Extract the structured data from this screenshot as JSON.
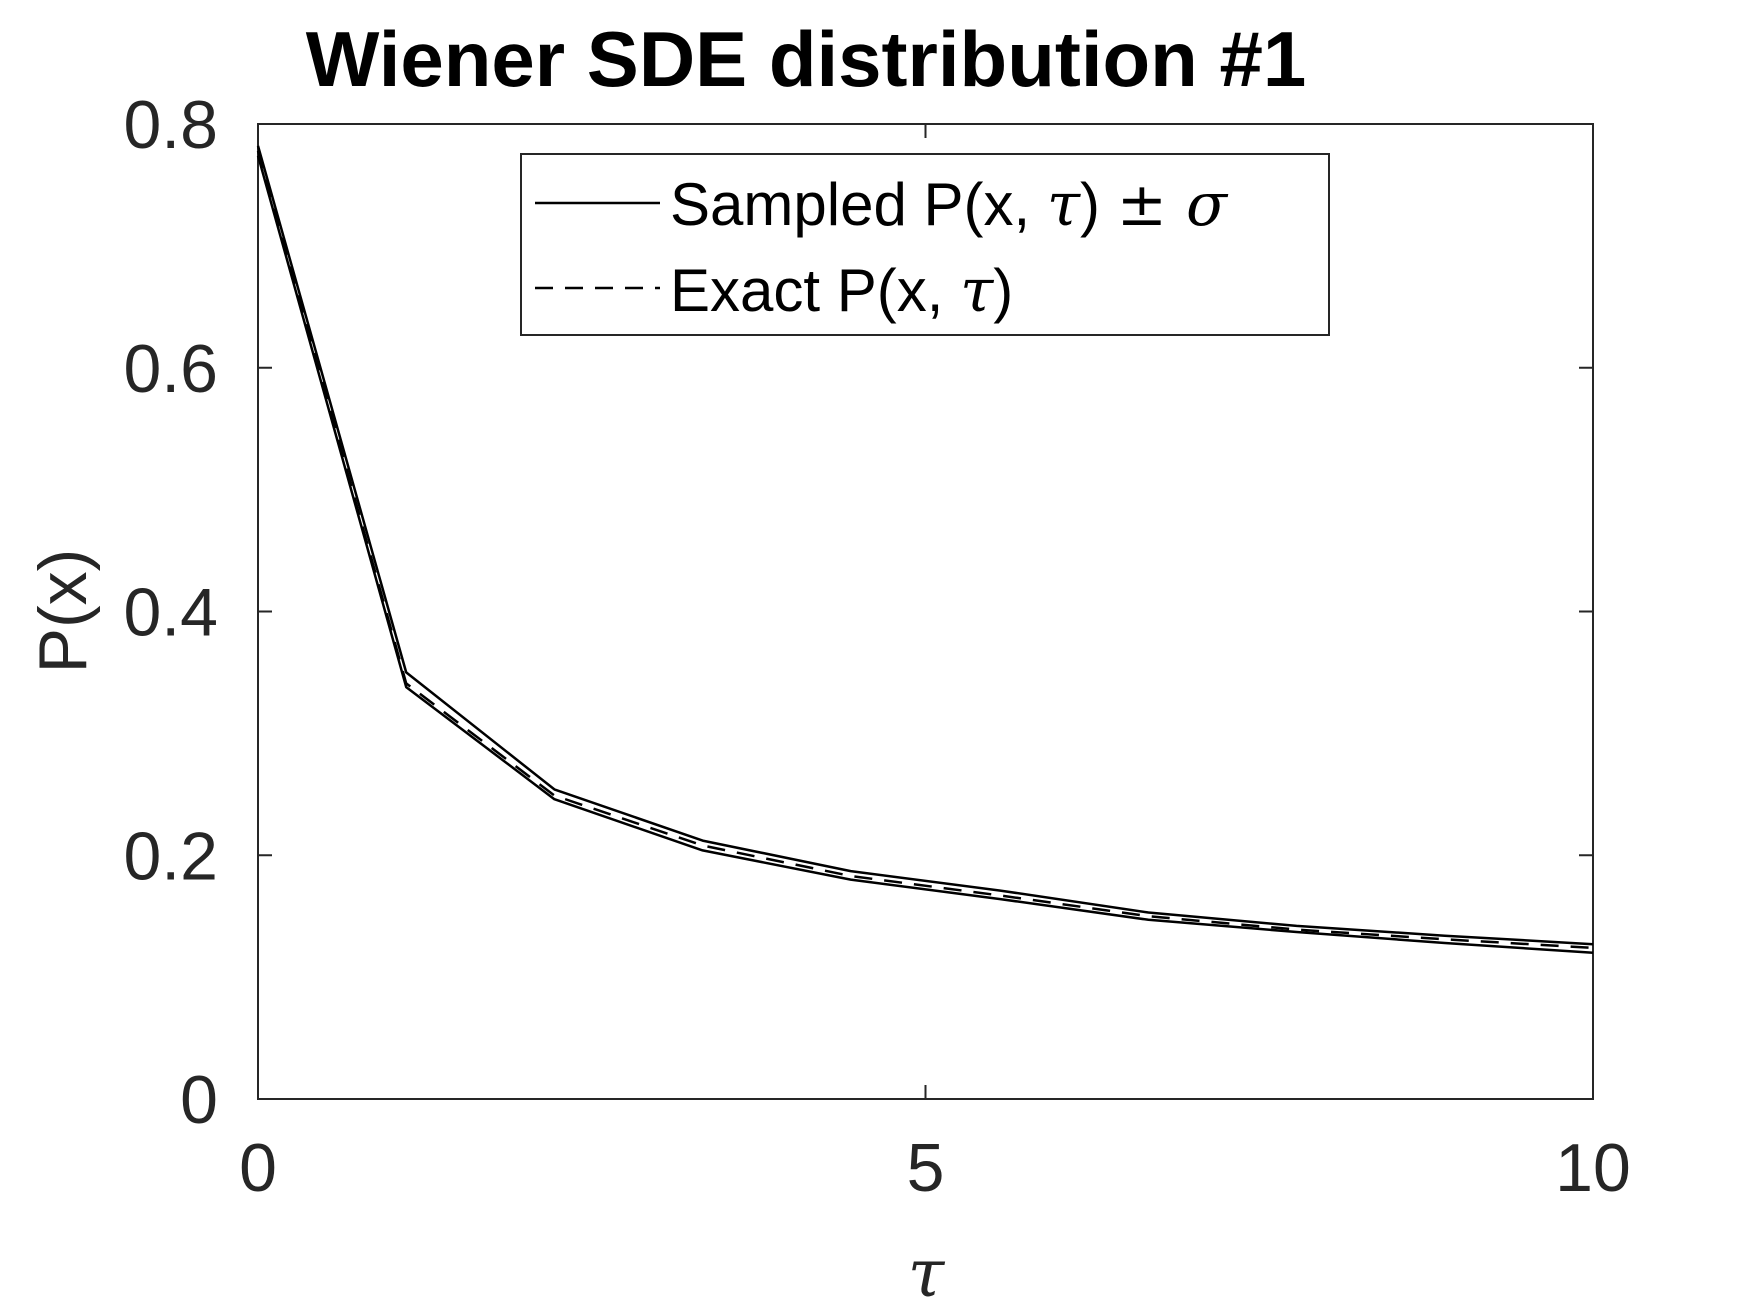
{
  "chart_data": {
    "type": "line",
    "title": "Wiener SDE distribution #1",
    "xlabel": "τ",
    "ylabel": "P(x)",
    "xlim": [
      0,
      10
    ],
    "ylim": [
      0,
      0.8
    ],
    "xticks": [
      "0",
      "5",
      "10"
    ],
    "yticks": [
      "0",
      "0.2",
      "0.4",
      "0.6",
      "0.8"
    ],
    "grid": false,
    "legend_position": "top-center",
    "x": [
      0,
      1.11,
      2.22,
      3.33,
      4.44,
      5.56,
      6.67,
      7.78,
      8.89,
      10
    ],
    "series": [
      {
        "name": "Sampled P(x, τ) ± σ",
        "style": "solid",
        "color": "#000000",
        "legend": true,
        "values": [
          0.782,
          0.35,
          0.254,
          0.212,
          0.187,
          0.171,
          0.153,
          0.142,
          0.134,
          0.127
        ]
      },
      {
        "name": "",
        "style": "solid",
        "color": "#000000",
        "legend": false,
        "values": [
          0.774,
          0.338,
          0.246,
          0.204,
          0.18,
          0.164,
          0.147,
          0.137,
          0.128,
          0.12
        ]
      },
      {
        "name": "Exact  P(x, τ)",
        "style": "dashed",
        "color": "#000000",
        "legend": true,
        "values": [
          0.778,
          0.341,
          0.249,
          0.208,
          0.183,
          0.167,
          0.15,
          0.139,
          0.131,
          0.124
        ]
      }
    ]
  },
  "legend": {
    "sampled_prefix": "Sampled P(x,  ",
    "sampled_tau": "τ",
    "sampled_close": ") ",
    "sampled_pm": "±",
    "sampled_sigma": " σ",
    "exact_prefix": "Exact  P(x,  ",
    "exact_tau": "τ",
    "exact_close": ")"
  }
}
